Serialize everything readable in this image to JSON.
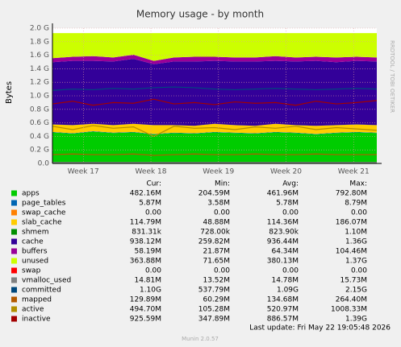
{
  "chart_data": {
    "type": "area",
    "title": "Memory usage - by month",
    "y_label": "Bytes",
    "side_text": "RRDTOOL / TOBI OETIKER",
    "x": [
      0,
      2.1,
      4.2,
      6.3,
      8.4,
      10.5,
      12.6,
      14.7,
      16.8,
      18.9,
      21,
      23.1,
      25.2,
      27.3,
      29.4,
      31.5,
      33.6
    ],
    "xlim": [
      0,
      33.6
    ],
    "xticks": [
      {
        "value": 3.2,
        "label": "Week 17"
      },
      {
        "value": 10.2,
        "label": "Week 18"
      },
      {
        "value": 17.2,
        "label": "Week 19"
      },
      {
        "value": 24.2,
        "label": "Week 20"
      },
      {
        "value": 31.2,
        "label": "Week 21"
      }
    ],
    "ylim": [
      0,
      2.0
    ],
    "yticks": [
      {
        "value": 0,
        "label": "0.0"
      },
      {
        "value": 0.2,
        "label": "0.2 G"
      },
      {
        "value": 0.4,
        "label": "0.4 G"
      },
      {
        "value": 0.6,
        "label": "0.6 G"
      },
      {
        "value": 0.8,
        "label": "0.8 G"
      },
      {
        "value": 1.0,
        "label": "1.0 G"
      },
      {
        "value": 1.2,
        "label": "1.2 G"
      },
      {
        "value": 1.4,
        "label": "1.4 G"
      },
      {
        "value": 1.6,
        "label": "1.6 G"
      },
      {
        "value": 1.8,
        "label": "1.8 G"
      },
      {
        "value": 2.0,
        "label": "2.0 G"
      }
    ],
    "grid": true,
    "stats_header": [
      "Cur:",
      "Min:",
      "Avg:",
      "Max:"
    ],
    "series": [
      {
        "name": "apps",
        "color": "#00cc00",
        "stacked": true,
        "values": [
          0.46,
          0.44,
          0.47,
          0.45,
          0.46,
          0.43,
          0.45,
          0.44,
          0.46,
          0.45,
          0.44,
          0.46,
          0.45,
          0.43,
          0.45,
          0.46,
          0.45
        ],
        "stats": [
          "482.16M",
          "204.59M",
          "461.96M",
          "792.80M"
        ]
      },
      {
        "name": "page_tables",
        "color": "#0066b3",
        "stacked": true,
        "values": [
          0.006,
          0.006,
          0.006,
          0.006,
          0.006,
          0.006,
          0.006,
          0.006,
          0.006,
          0.006,
          0.006,
          0.006,
          0.006,
          0.006,
          0.006,
          0.006,
          0.006
        ],
        "stats": [
          "5.87M",
          "3.58M",
          "5.78M",
          "8.79M"
        ]
      },
      {
        "name": "swap_cache",
        "color": "#ff8000",
        "stacked": true,
        "values": [
          0,
          0,
          0,
          0,
          0,
          0,
          0,
          0,
          0,
          0,
          0,
          0,
          0,
          0,
          0,
          0,
          0
        ],
        "stats": [
          "0.00",
          "0.00",
          "0.00",
          "0.00"
        ]
      },
      {
        "name": "slab_cache",
        "color": "#ffcc00",
        "stacked": true,
        "values": [
          0.11,
          0.12,
          0.11,
          0.11,
          0.12,
          0.13,
          0.11,
          0.11,
          0.12,
          0.11,
          0.11,
          0.12,
          0.11,
          0.12,
          0.11,
          0.11,
          0.11
        ],
        "stats": [
          "114.79M",
          "48.88M",
          "114.36M",
          "186.07M"
        ]
      },
      {
        "name": "shmem",
        "color": "#008f00",
        "stacked": true,
        "values": [
          0.0008,
          0.0008,
          0.0008,
          0.0008,
          0.0008,
          0.0008,
          0.0008,
          0.0008,
          0.0008,
          0.0008,
          0.0008,
          0.0008,
          0.0008,
          0.0008,
          0.0008,
          0.0008,
          0.0008
        ],
        "stats": [
          "831.31k",
          "728.00k",
          "823.90k",
          "1.10M"
        ]
      },
      {
        "name": "cache",
        "color": "#330099",
        "stacked": true,
        "values": [
          0.92,
          0.95,
          0.93,
          0.94,
          0.96,
          0.9,
          0.94,
          0.95,
          0.93,
          0.94,
          0.95,
          0.93,
          0.94,
          0.96,
          0.93,
          0.94,
          0.94
        ],
        "stats": [
          "938.12M",
          "259.82M",
          "936.44M",
          "1.36G"
        ]
      },
      {
        "name": "buffers",
        "color": "#990099",
        "stacked": true,
        "values": [
          0.06,
          0.06,
          0.07,
          0.06,
          0.06,
          0.05,
          0.06,
          0.07,
          0.06,
          0.06,
          0.06,
          0.07,
          0.06,
          0.06,
          0.07,
          0.06,
          0.06
        ],
        "stats": [
          "58.19M",
          "21.87M",
          "64.34M",
          "104.46M"
        ]
      },
      {
        "name": "unused",
        "color": "#ccff00",
        "stacked": true,
        "values": [
          0.37,
          0.35,
          0.34,
          0.36,
          0.32,
          0.41,
          0.36,
          0.35,
          0.35,
          0.36,
          0.36,
          0.34,
          0.36,
          0.35,
          0.36,
          0.35,
          0.36
        ],
        "stats": [
          "363.88M",
          "71.65M",
          "380.13M",
          "1.37G"
        ]
      },
      {
        "name": "swap",
        "color": "#ff0000",
        "stacked": true,
        "values": [
          0,
          0,
          0,
          0,
          0,
          0,
          0,
          0,
          0,
          0,
          0,
          0,
          0,
          0,
          0,
          0,
          0
        ],
        "stats": [
          "0.00",
          "0.00",
          "0.00",
          "0.00"
        ]
      },
      {
        "name": "vmalloc_used",
        "color": "#808080",
        "stacked": false,
        "values": [
          0.015,
          0.015,
          0.015,
          0.015,
          0.015,
          0.015,
          0.015,
          0.015,
          0.015,
          0.015,
          0.015,
          0.015,
          0.015,
          0.015,
          0.015,
          0.015,
          0.015
        ],
        "stats": [
          "14.81M",
          "13.52M",
          "14.78M",
          "15.73M"
        ]
      },
      {
        "name": "committed",
        "color": "#00487d",
        "stacked": false,
        "values": [
          1.08,
          1.1,
          1.09,
          1.11,
          1.1,
          1.12,
          1.13,
          1.12,
          1.1,
          1.09,
          1.1,
          1.11,
          1.1,
          1.09,
          1.1,
          1.11,
          1.1
        ],
        "stats": [
          "1.10G",
          "537.79M",
          "1.09G",
          "2.15G"
        ]
      },
      {
        "name": "mapped",
        "color": "#b35a00",
        "stacked": false,
        "values": [
          0.13,
          0.14,
          0.13,
          0.13,
          0.14,
          0.12,
          0.13,
          0.14,
          0.13,
          0.13,
          0.14,
          0.13,
          0.13,
          0.14,
          0.13,
          0.13,
          0.13
        ],
        "stats": [
          "129.89M",
          "60.29M",
          "134.68M",
          "264.40M"
        ]
      },
      {
        "name": "active",
        "color": "#b38f00",
        "stacked": false,
        "values": [
          0.55,
          0.5,
          0.56,
          0.52,
          0.54,
          0.4,
          0.55,
          0.52,
          0.53,
          0.5,
          0.54,
          0.52,
          0.55,
          0.5,
          0.53,
          0.51,
          0.49
        ],
        "stats": [
          "494.70M",
          "105.28M",
          "520.97M",
          "1008.33M"
        ]
      },
      {
        "name": "inactive",
        "color": "#a30000",
        "stacked": false,
        "values": [
          0.88,
          0.92,
          0.86,
          0.9,
          0.89,
          0.95,
          0.88,
          0.9,
          0.87,
          0.91,
          0.89,
          0.9,
          0.86,
          0.92,
          0.88,
          0.9,
          0.93
        ],
        "stats": [
          "925.59M",
          "347.89M",
          "886.57M",
          "1.39G"
        ]
      }
    ],
    "last_update": "Last update: Fri May 22 19:05:48 2026",
    "footer": "Munin 2.0.57"
  }
}
